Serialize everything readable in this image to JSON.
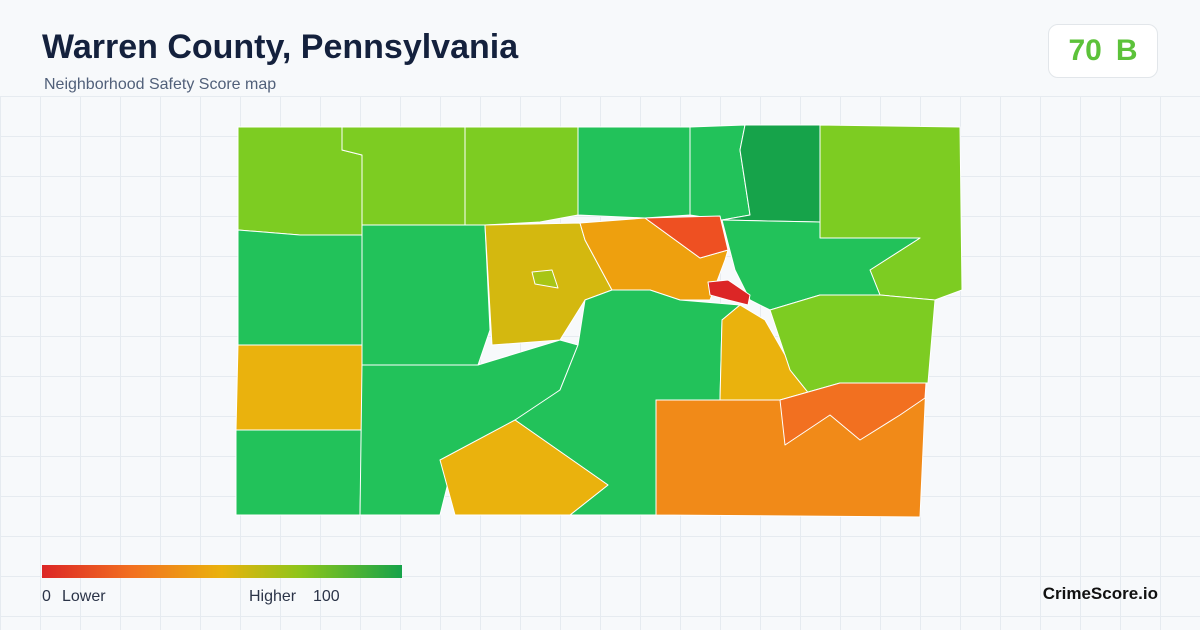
{
  "header": {
    "title": "Warren County, Pennsylvania",
    "subtitle": "Neighborhood Safety Score map"
  },
  "score": {
    "value": "70",
    "grade": "B"
  },
  "legend": {
    "min": "0",
    "low_label": "Lower",
    "high_label": "Higher",
    "max": "100"
  },
  "brand": "CrimeScore.io"
}
